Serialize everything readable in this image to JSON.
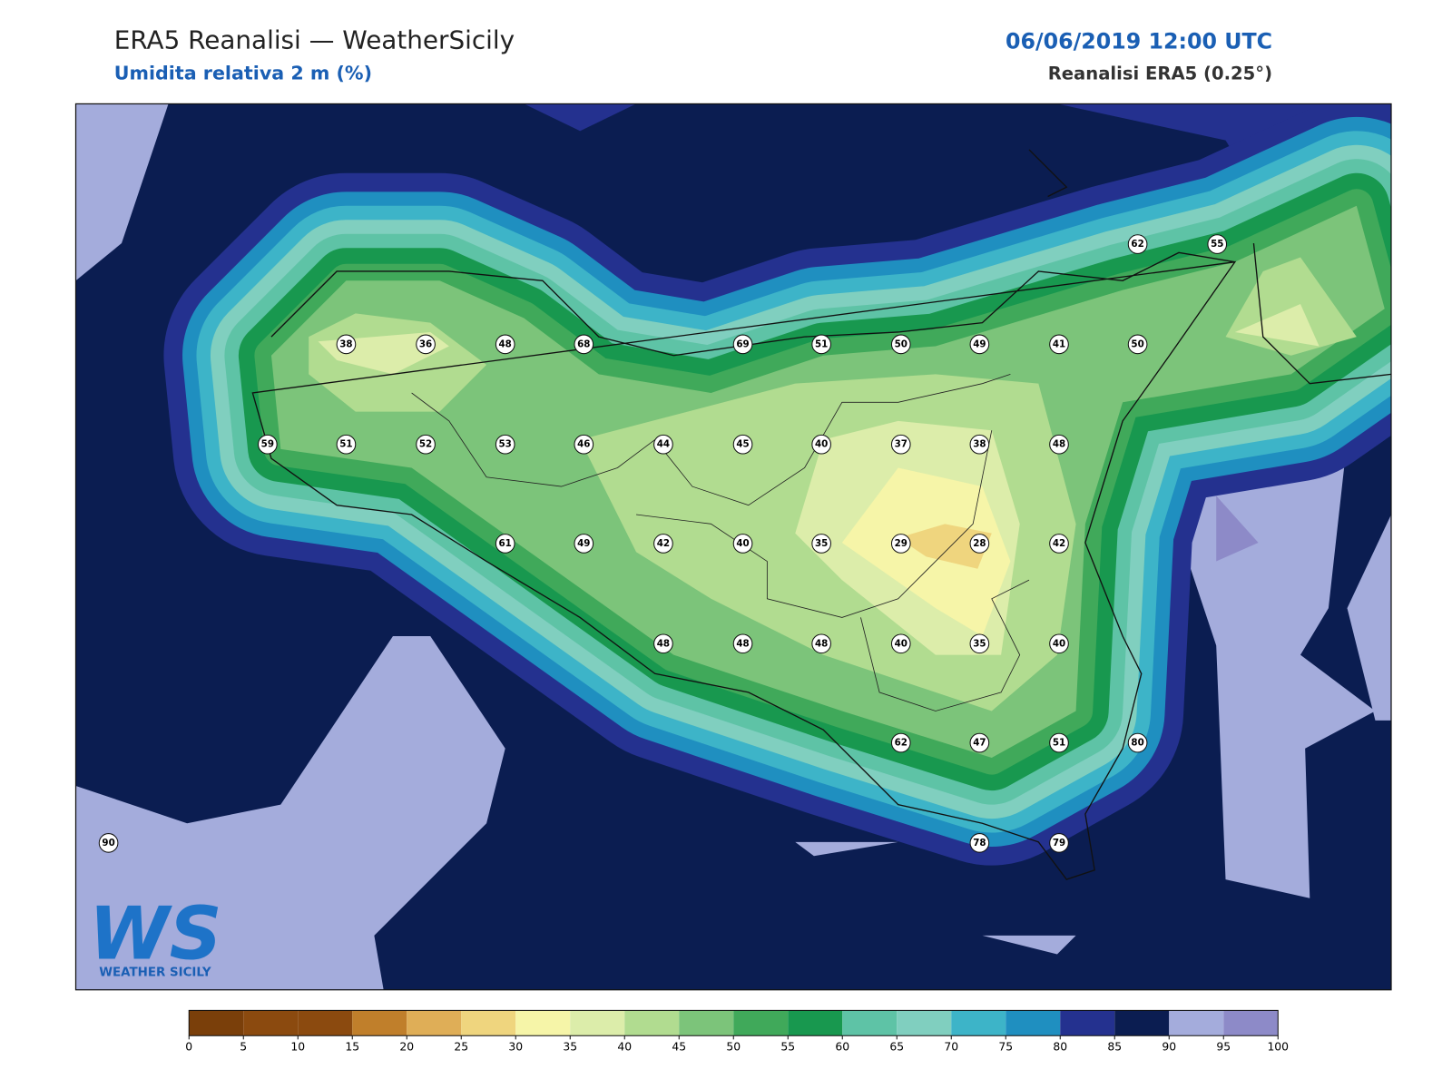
{
  "header": {
    "title": "ERA5 Reanalisi — WeatherSicily",
    "subtitle": "Umidita relativa 2 m (%)",
    "datetime": "06/06/2019 12:00 UTC",
    "source": "Reanalisi ERA5 (0.25°)"
  },
  "stations": [
    62,
    55,
    38,
    36,
    48,
    68,
    69,
    51,
    50,
    49,
    41,
    50,
    59,
    51,
    52,
    53,
    46,
    44,
    45,
    40,
    37,
    38,
    48,
    61,
    49,
    42,
    40,
    35,
    29,
    28,
    42,
    48,
    48,
    48,
    40,
    35,
    40,
    62,
    47,
    51,
    80,
    90,
    78,
    79
  ],
  "colorbar": {
    "ticks": [
      0,
      5,
      10,
      15,
      20,
      25,
      30,
      35,
      40,
      45,
      50,
      55,
      60,
      65,
      70,
      75,
      80,
      85,
      90,
      95,
      100
    ],
    "colors": [
      "#7a3f0a",
      "#8b4a0f",
      "#8b4a0f",
      "#c07f2b",
      "#dfae57",
      "#efd57e",
      "#f6f5a8",
      "#dcedaa",
      "#b1dc90",
      "#7cc47a",
      "#40a95a",
      "#18984f",
      "#5ec3a6",
      "#80cfbf",
      "#3db4c8",
      "#1f8fc0",
      "#24318f",
      "#0b1d51",
      "#a4acdc",
      "#8d8ac8"
    ]
  },
  "logo": {
    "mark": "WS",
    "text": "WEATHER SICILY"
  }
}
